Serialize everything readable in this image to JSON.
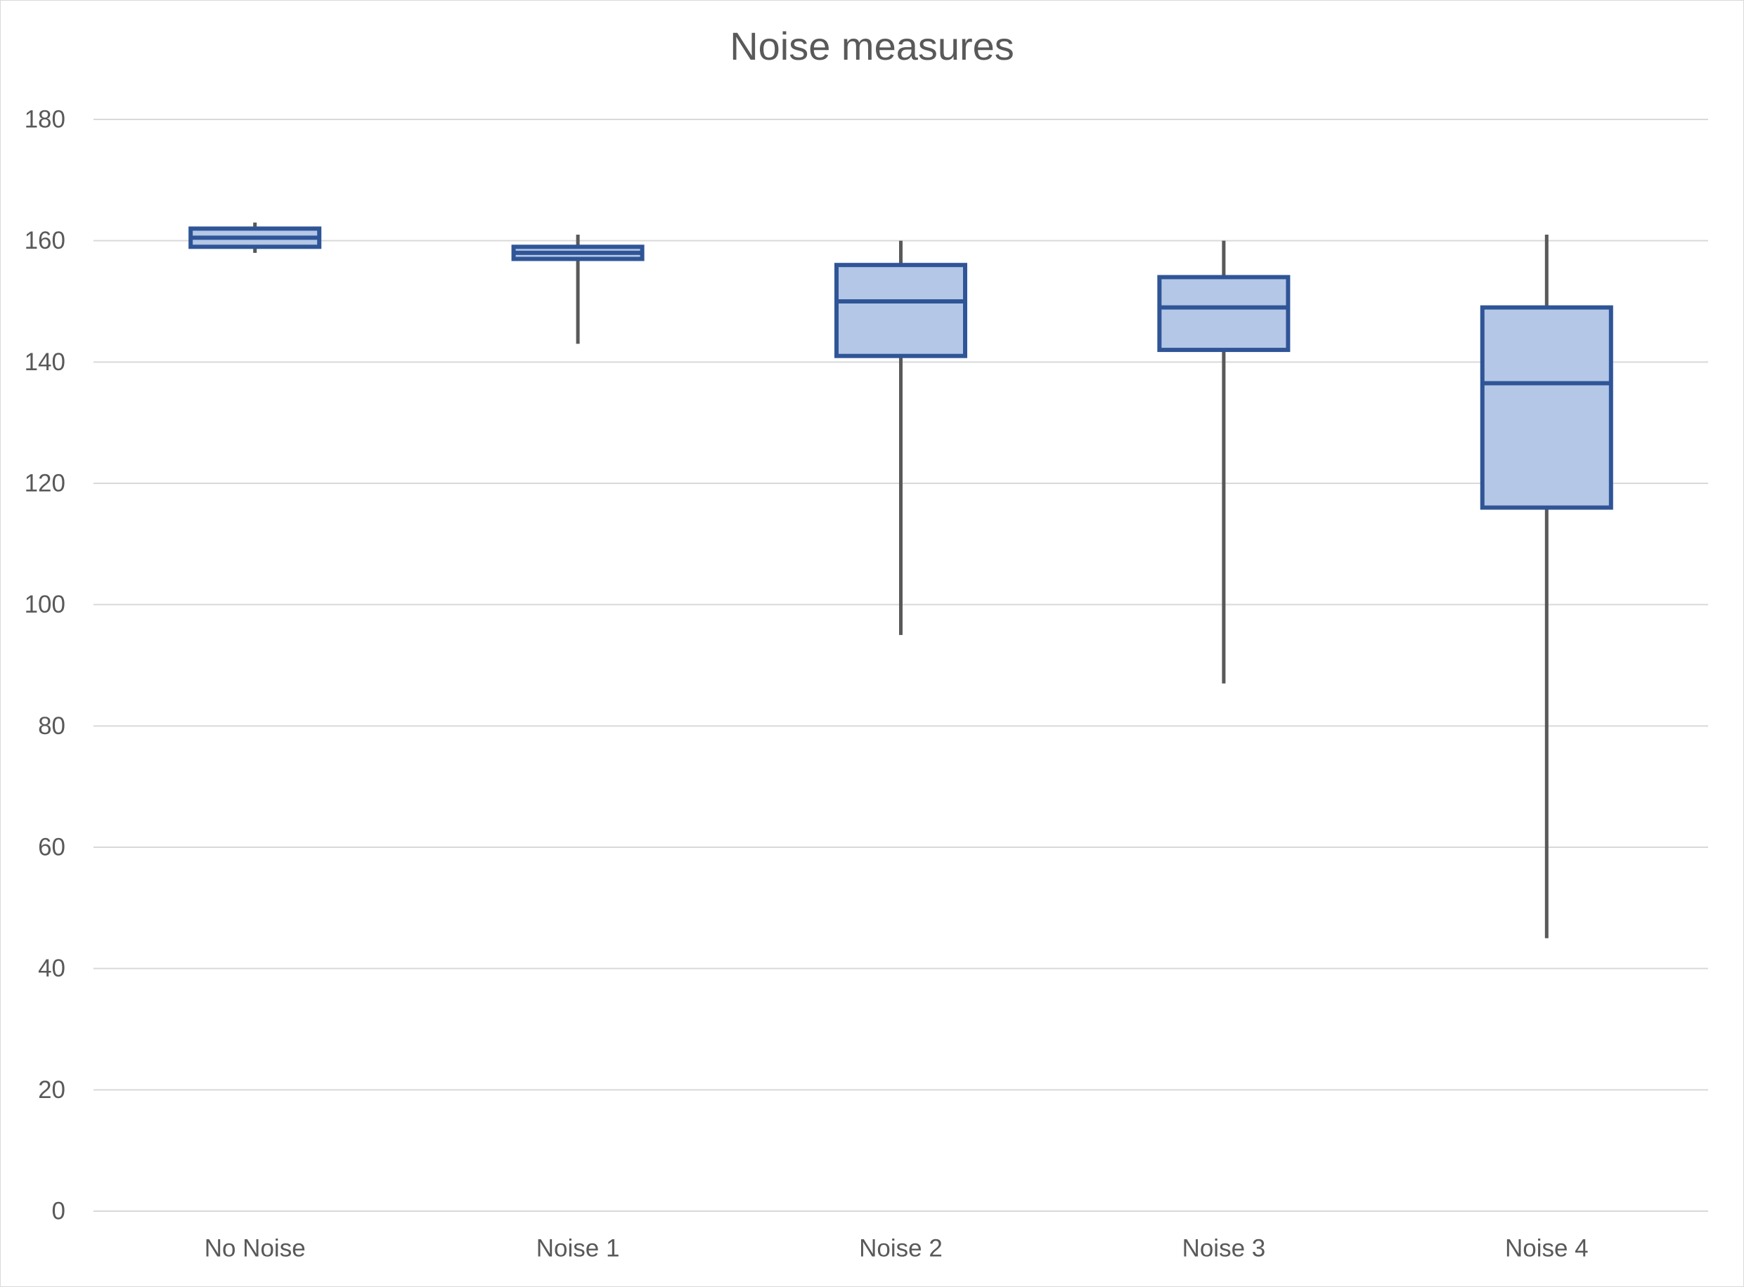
{
  "chart_data": {
    "type": "boxplot",
    "title": "Noise measures",
    "xlabel": "",
    "ylabel": "",
    "ylim": [
      0,
      180
    ],
    "y_ticks": [
      "0",
      "20",
      "40",
      "60",
      "80",
      "100",
      "120",
      "140",
      "160",
      "180"
    ],
    "grid": true,
    "legend": "none",
    "categories": [
      "No Noise",
      "Noise 1",
      "Noise 2",
      "Noise 3",
      "Noise 4"
    ],
    "boxes": [
      {
        "category": "No Noise",
        "min": 158,
        "q1": 159,
        "median": 160.5,
        "q3": 162,
        "max": 163
      },
      {
        "category": "Noise 1",
        "min": 143,
        "q1": 157,
        "median": 158,
        "q3": 159,
        "max": 161
      },
      {
        "category": "Noise 2",
        "min": 95,
        "q1": 141,
        "median": 150,
        "q3": 156,
        "max": 160
      },
      {
        "category": "Noise 3",
        "min": 87,
        "q1": 142,
        "median": 149,
        "q3": 154,
        "max": 160
      },
      {
        "category": "Noise 4",
        "min": 45,
        "q1": 116,
        "median": 136.5,
        "q3": 149,
        "max": 161
      }
    ],
    "colors": {
      "box_fill": "#b4c7e7",
      "box_stroke": "#2f5597",
      "whisker": "#595959",
      "grid": "#d9d9d9",
      "text": "#595959"
    }
  }
}
